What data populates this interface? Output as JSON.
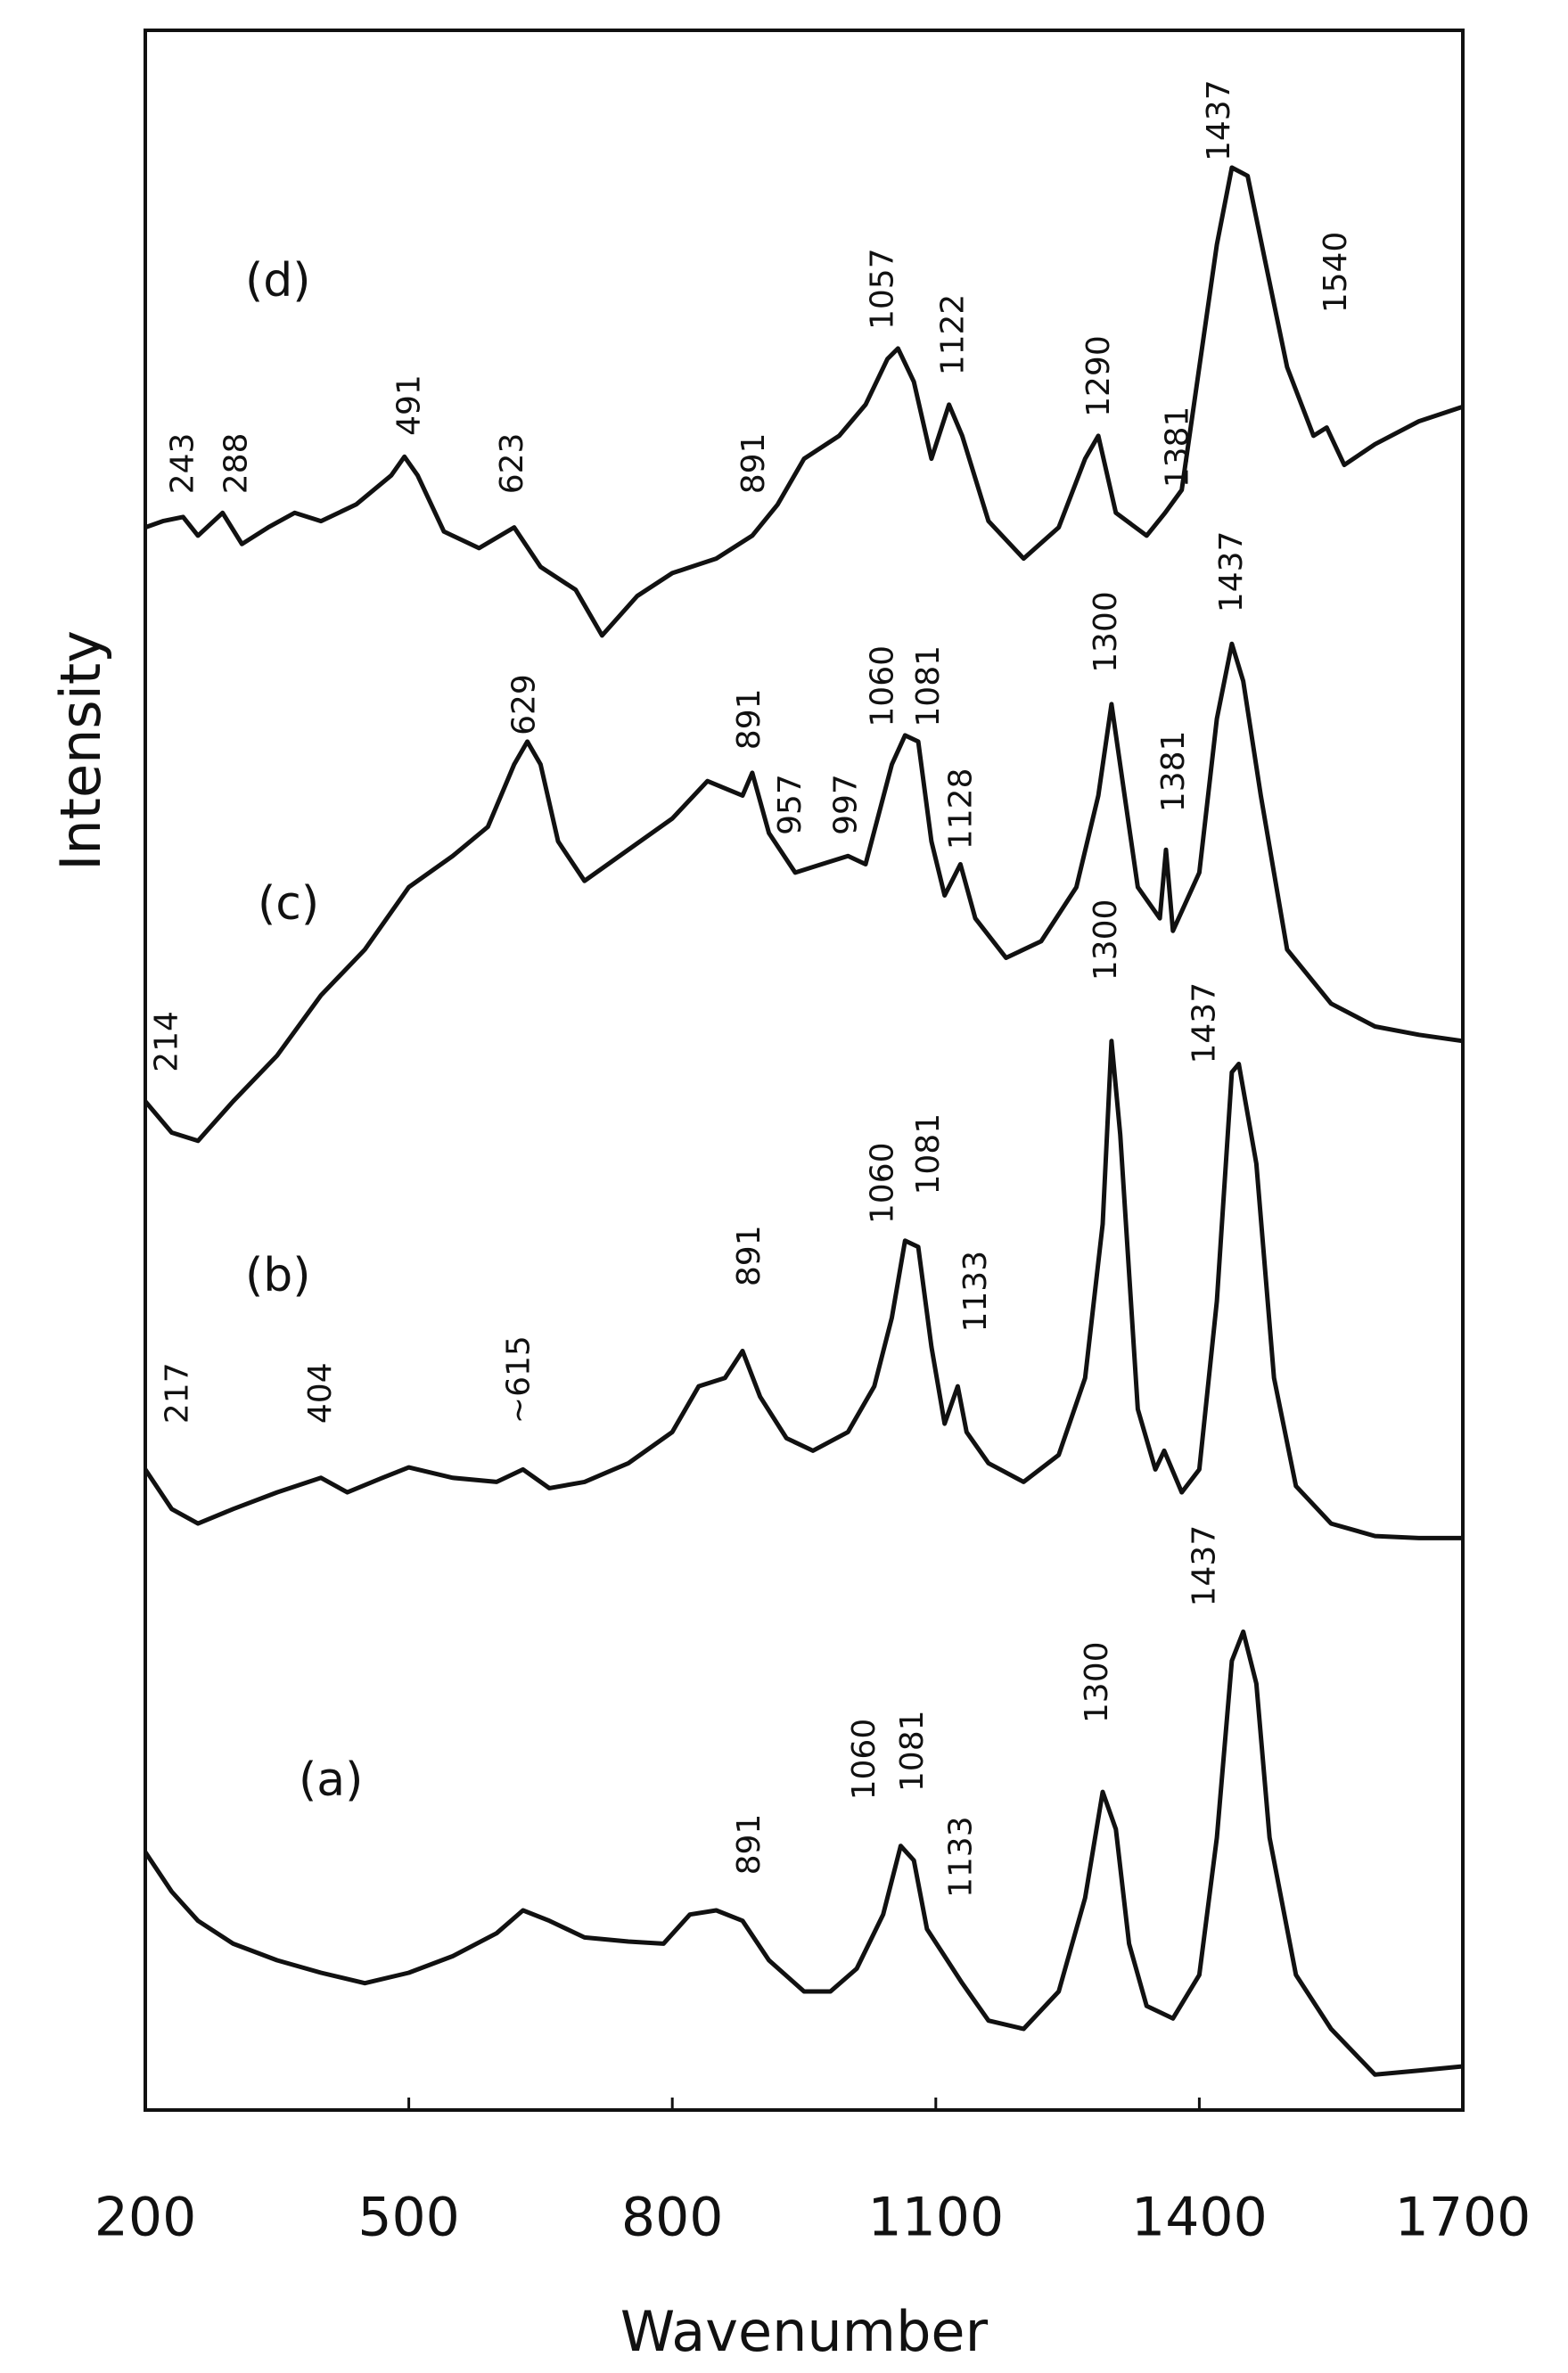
{
  "chart_data": {
    "type": "line",
    "x_label": "Wavenumber",
    "y_label": "Intensity",
    "xlim": [
      200,
      1700
    ],
    "xticks": [
      200,
      500,
      800,
      1100,
      1400,
      1700
    ],
    "ylim": [
      0,
      100
    ],
    "color": "#111111",
    "series": [
      {
        "name": "(a)",
        "color": "#111111",
        "x": [
          200,
          230,
          260,
          300,
          350,
          400,
          450,
          500,
          550,
          600,
          630,
          660,
          700,
          750,
          790,
          820,
          850,
          880,
          910,
          950,
          980,
          1010,
          1040,
          1060,
          1075,
          1090,
          1110,
          1130,
          1160,
          1200,
          1240,
          1270,
          1290,
          1305,
          1320,
          1340,
          1370,
          1400,
          1420,
          1437,
          1450,
          1465,
          1480,
          1510,
          1550,
          1600,
          1650,
          1700
        ],
        "values": [
          12.4,
          10.5,
          9.1,
          8.0,
          7.2,
          6.6,
          6.1,
          6.6,
          7.4,
          8.5,
          9.6,
          9.1,
          8.3,
          8.1,
          8.0,
          9.4,
          9.6,
          9.1,
          7.2,
          5.7,
          5.7,
          6.8,
          9.4,
          12.7,
          12.0,
          8.7,
          7.4,
          6.1,
          4.3,
          3.9,
          5.7,
          10.2,
          15.3,
          13.5,
          8.0,
          5.0,
          4.4,
          6.5,
          13.1,
          21.6,
          23.0,
          20.5,
          13.1,
          6.5,
          3.9,
          1.7,
          1.9,
          2.1
        ]
      },
      {
        "name": "(b)",
        "color": "#111111",
        "x": [
          200,
          230,
          260,
          300,
          350,
          400,
          430,
          470,
          500,
          550,
          600,
          630,
          660,
          700,
          750,
          800,
          830,
          860,
          880,
          900,
          930,
          960,
          1000,
          1030,
          1050,
          1065,
          1080,
          1095,
          1110,
          1125,
          1135,
          1160,
          1200,
          1240,
          1270,
          1290,
          1300,
          1310,
          1330,
          1350,
          1360,
          1380,
          1400,
          1420,
          1437,
          1445,
          1465,
          1485,
          1510,
          1550,
          1600,
          1650,
          1700
        ],
        "values": [
          30.8,
          28.9,
          28.2,
          28.9,
          29.7,
          30.4,
          29.7,
          30.4,
          30.9,
          30.4,
          30.2,
          30.8,
          29.9,
          30.2,
          31.1,
          32.6,
          34.8,
          35.2,
          36.5,
          34.3,
          32.3,
          31.7,
          32.6,
          34.8,
          38.1,
          41.8,
          41.5,
          36.7,
          33.0,
          34.8,
          32.6,
          31.1,
          30.2,
          31.5,
          35.2,
          42.6,
          51.4,
          46.9,
          33.7,
          30.8,
          31.7,
          29.7,
          30.8,
          38.9,
          49.9,
          50.3,
          45.5,
          35.2,
          30.0,
          28.2,
          27.6,
          27.5,
          27.5
        ]
      },
      {
        "name": "(c)",
        "color": "#111111",
        "x": [
          200,
          230,
          260,
          300,
          350,
          400,
          450,
          500,
          550,
          590,
          620,
          635,
          650,
          670,
          700,
          750,
          800,
          840,
          880,
          891,
          910,
          940,
          970,
          1000,
          1020,
          1050,
          1065,
          1080,
          1095,
          1110,
          1128,
          1145,
          1180,
          1220,
          1260,
          1285,
          1300,
          1315,
          1330,
          1355,
          1362,
          1370,
          1400,
          1420,
          1437,
          1450,
          1470,
          1500,
          1550,
          1600,
          1650,
          1700
        ],
        "values": [
          48.5,
          47.0,
          46.6,
          48.5,
          50.7,
          53.6,
          55.8,
          58.8,
          60.3,
          61.7,
          64.7,
          65.8,
          64.7,
          61.0,
          59.1,
          60.6,
          62.1,
          63.9,
          63.2,
          64.3,
          61.4,
          59.5,
          59.9,
          60.3,
          59.9,
          64.7,
          66.1,
          65.8,
          61.0,
          58.4,
          59.9,
          57.3,
          55.4,
          56.2,
          58.8,
          63.2,
          67.6,
          63.2,
          58.8,
          57.3,
          60.6,
          56.7,
          59.5,
          66.9,
          70.5,
          68.7,
          63.2,
          55.8,
          53.2,
          52.1,
          51.7,
          51.4
        ]
      },
      {
        "name": "(d)",
        "color": "#111111",
        "x": [
          200,
          220,
          243,
          260,
          288,
          310,
          340,
          370,
          400,
          440,
          480,
          495,
          510,
          540,
          580,
          620,
          650,
          690,
          720,
          760,
          800,
          850,
          891,
          920,
          950,
          990,
          1020,
          1045,
          1057,
          1075,
          1095,
          1115,
          1130,
          1160,
          1200,
          1240,
          1270,
          1285,
          1305,
          1340,
          1361,
          1380,
          1400,
          1420,
          1437,
          1455,
          1475,
          1500,
          1530,
          1545,
          1565,
          1600,
          1650,
          1700
        ],
        "values": [
          76.1,
          76.4,
          76.6,
          75.7,
          76.8,
          75.3,
          76.1,
          76.8,
          76.4,
          77.2,
          78.6,
          79.5,
          78.6,
          75.9,
          75.1,
          76.1,
          74.2,
          73.1,
          70.9,
          72.8,
          73.9,
          74.6,
          75.7,
          77.2,
          79.4,
          80.5,
          82.0,
          84.2,
          84.7,
          83.1,
          79.4,
          82.0,
          80.5,
          76.4,
          74.6,
          76.1,
          79.4,
          80.5,
          76.8,
          75.7,
          76.8,
          77.9,
          83.8,
          89.7,
          93.4,
          93.0,
          88.9,
          83.8,
          80.5,
          80.9,
          79.1,
          80.1,
          81.2,
          81.9
        ]
      }
    ],
    "annotations": [
      {
        "text": "243",
        "x": 244,
        "y": 77.7
      },
      {
        "text": "288",
        "x": 305,
        "y": 77.7
      },
      {
        "text": "491",
        "x": 502,
        "y": 80.5
      },
      {
        "text": "623",
        "x": 619,
        "y": 77.7
      },
      {
        "text": "891",
        "x": 894,
        "y": 77.7
      },
      {
        "text": "1057",
        "x": 1041,
        "y": 85.6
      },
      {
        "text": "1122",
        "x": 1121,
        "y": 83.4
      },
      {
        "text": "1290",
        "x": 1287,
        "y": 81.4
      },
      {
        "text": "1381",
        "x": 1377,
        "y": 78.0
      },
      {
        "text": "1437",
        "x": 1424,
        "y": 93.7
      },
      {
        "text": "1540",
        "x": 1557,
        "y": 86.4
      },
      {
        "text": "214",
        "x": 226,
        "y": 49.9
      },
      {
        "text": "629",
        "x": 633,
        "y": 66.1
      },
      {
        "text": "891",
        "x": 889,
        "y": 65.4
      },
      {
        "text": "957",
        "x": 936,
        "y": 61.3
      },
      {
        "text": "997",
        "x": 999,
        "y": 61.3
      },
      {
        "text": "1060",
        "x": 1041,
        "y": 66.5
      },
      {
        "text": "1081",
        "x": 1093,
        "y": 66.5
      },
      {
        "text": "1128",
        "x": 1130,
        "y": 60.6
      },
      {
        "text": "1300",
        "x": 1295,
        "y": 69.1
      },
      {
        "text": "1381",
        "x": 1372,
        "y": 62.4
      },
      {
        "text": "1437",
        "x": 1438,
        "y": 72.0
      },
      {
        "text": "217",
        "x": 238,
        "y": 33.0
      },
      {
        "text": "404",
        "x": 401,
        "y": 33.0
      },
      {
        "text": "~615",
        "x": 627,
        "y": 33.0
      },
      {
        "text": "891",
        "x": 889,
        "y": 39.6
      },
      {
        "text": "1060",
        "x": 1041,
        "y": 42.6
      },
      {
        "text": "1081",
        "x": 1093,
        "y": 44.0
      },
      {
        "text": "1133",
        "x": 1147,
        "y": 37.4
      },
      {
        "text": "1300",
        "x": 1295,
        "y": 54.3
      },
      {
        "text": "1437",
        "x": 1407,
        "y": 50.3
      },
      {
        "text": "891",
        "x": 889,
        "y": 11.3
      },
      {
        "text": "1060",
        "x": 1020,
        "y": 14.9
      },
      {
        "text": "1081",
        "x": 1075,
        "y": 15.3
      },
      {
        "text": "1133",
        "x": 1130,
        "y": 10.2
      },
      {
        "text": "1300",
        "x": 1285,
        "y": 18.6
      },
      {
        "text": "1437",
        "x": 1407,
        "y": 24.2
      }
    ]
  }
}
